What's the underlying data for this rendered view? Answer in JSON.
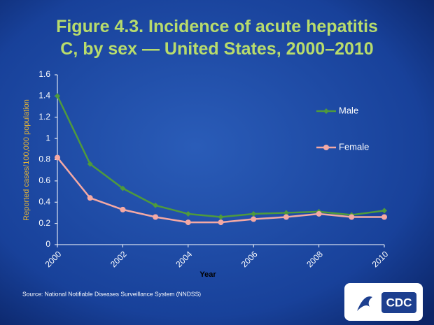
{
  "chart_data": {
    "type": "line",
    "title": "Figure 4.3. Incidence of acute hepatitis C, by sex — United States, 2000–2010",
    "x": [
      2000,
      2001,
      2002,
      2003,
      2004,
      2005,
      2006,
      2007,
      2008,
      2009,
      2010
    ],
    "series": [
      {
        "name": "Male",
        "color": "#4f9a3c",
        "marker": "diamond",
        "values": [
          1.4,
          0.76,
          0.53,
          0.37,
          0.29,
          0.26,
          0.29,
          0.3,
          0.31,
          0.28,
          0.32
        ]
      },
      {
        "name": "Female",
        "color": "#f4a9a4",
        "marker": "circle",
        "values": [
          0.82,
          0.44,
          0.33,
          0.26,
          0.21,
          0.21,
          0.24,
          0.26,
          0.29,
          0.26,
          0.26
        ]
      }
    ],
    "xlim": [
      2000,
      2010
    ],
    "xticks": [
      2000,
      2002,
      2004,
      2006,
      2008,
      2010
    ],
    "ylim": [
      0,
      1.6
    ],
    "yticks": [
      0,
      0.2,
      0.4,
      0.6,
      0.8,
      1,
      1.2,
      1.4,
      1.6
    ],
    "xlabel": "Year",
    "ylabel": "Reported cases/100,000 population",
    "legend": "right",
    "source": "Source: National Notifiable Diseases Surveillance System (NNDSS)",
    "logo": "CDC"
  }
}
